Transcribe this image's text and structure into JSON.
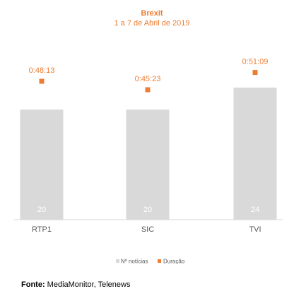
{
  "colors": {
    "bar": "#d9d9d9",
    "accent": "#ed7d31",
    "text": "#595959"
  },
  "chart_data": {
    "type": "bar",
    "title": "Brexit",
    "subtitle": "1 a 7 de Abril de 2019",
    "categories": [
      "RTP1",
      "SIC",
      "TVI"
    ],
    "series": [
      {
        "name": "Nº notícias",
        "kind": "bar",
        "values": [
          20,
          20,
          24
        ]
      },
      {
        "name": "Duração",
        "kind": "marker",
        "values": [
          "0:48:13",
          "0:45:23",
          "0:51:09"
        ]
      }
    ],
    "ylim": [
      0,
      24
    ],
    "grid": false,
    "legend": "bottom-center"
  },
  "source": {
    "label": "Fonte:",
    "text": "MediaMonitor, Telenews"
  }
}
